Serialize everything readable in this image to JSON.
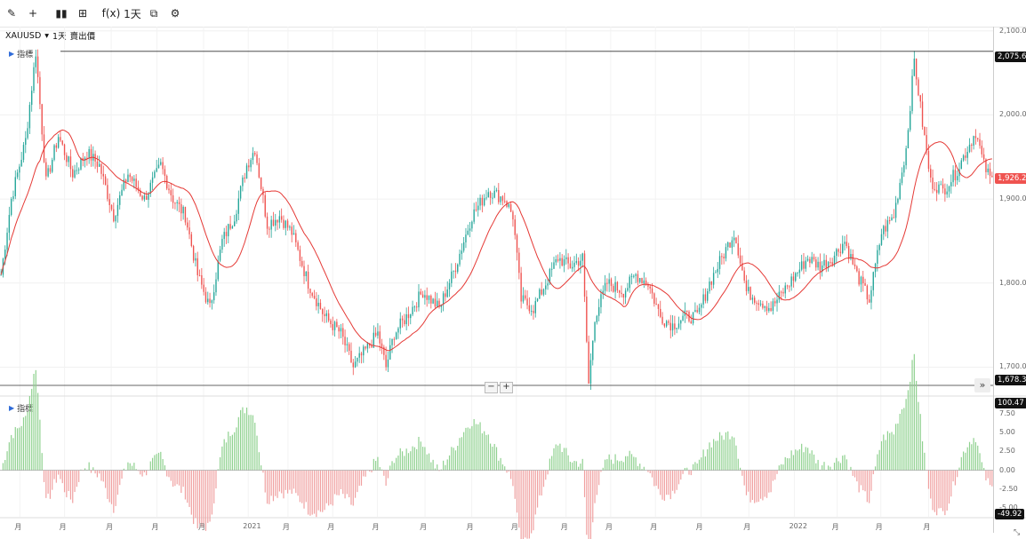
{
  "toolbar": {
    "items": [
      {
        "name": "draw-pencil-icon",
        "glyph": "✎"
      },
      {
        "name": "crosshair-icon",
        "glyph": "+"
      },
      {
        "name": "candlestick-type-icon",
        "glyph": "▮▮"
      },
      {
        "name": "layout-grid-icon",
        "glyph": "⊞"
      },
      {
        "name": "indicators-fx-icon",
        "glyph": "f(x)"
      },
      {
        "name": "interval-selector",
        "glyph": "1天"
      },
      {
        "name": "compare-icon",
        "glyph": "⧉"
      },
      {
        "name": "settings-icon",
        "glyph": "⚙"
      }
    ]
  },
  "symbol": {
    "ticker": "XAUUSD",
    "arrow": "▾",
    "interval": "1天",
    "mode": "賣出價"
  },
  "indicator_label": "指標",
  "price_badges": {
    "high": "2,075.63",
    "last": "1,926.26",
    "low": "1,678.35"
  },
  "osc_badges": {
    "top": "100.47",
    "bottom": "-49.92"
  },
  "colors": {
    "up": "#26a69a",
    "down": "#ef5350",
    "ma": "#e53935",
    "osc_up": "#8fd18f",
    "osc_down": "#f0a0a0",
    "last_badge": "#ef5350",
    "dark_badge": "#111111"
  },
  "zoom": {
    "minus": "−",
    "plus": "+"
  },
  "forward_glyph": "»",
  "corner_glyph": "⤡",
  "chart_data": [
    {
      "type": "candlestick",
      "series_name": "XAUUSD",
      "price_ticks": [
        {
          "value": 2100,
          "label": "2,100.00"
        },
        {
          "value": 2000,
          "label": "2,000.00"
        },
        {
          "value": 1900,
          "label": "1,900.00"
        },
        {
          "value": 1800,
          "label": "1,800.00"
        },
        {
          "value": 1700,
          "label": "1,700.00"
        }
      ],
      "ylim": [
        1672,
        2105
      ],
      "high_line": 2075.63,
      "low_line": 1678.35,
      "last": 1926.26,
      "ma_color": "#e53935",
      "anchors": [
        [
          0,
          1810
        ],
        [
          5,
          1900
        ],
        [
          12,
          1970
        ],
        [
          17,
          2075
        ],
        [
          22,
          1920
        ],
        [
          28,
          1975
        ],
        [
          35,
          1930
        ],
        [
          42,
          1955
        ],
        [
          48,
          1940
        ],
        [
          55,
          1880
        ],
        [
          62,
          1930
        ],
        [
          70,
          1900
        ],
        [
          78,
          1940
        ],
        [
          84,
          1900
        ],
        [
          90,
          1880
        ],
        [
          96,
          1810
        ],
        [
          102,
          1770
        ],
        [
          108,
          1850
        ],
        [
          114,
          1880
        ],
        [
          120,
          1940
        ],
        [
          124,
          1960
        ],
        [
          130,
          1870
        ],
        [
          136,
          1880
        ],
        [
          142,
          1860
        ],
        [
          150,
          1800
        ],
        [
          158,
          1760
        ],
        [
          166,
          1740
        ],
        [
          172,
          1700
        ],
        [
          178,
          1720
        ],
        [
          184,
          1740
        ],
        [
          188,
          1700
        ],
        [
          192,
          1740
        ],
        [
          198,
          1760
        ],
        [
          206,
          1790
        ],
        [
          214,
          1770
        ],
        [
          222,
          1820
        ],
        [
          230,
          1880
        ],
        [
          238,
          1910
        ],
        [
          246,
          1900
        ],
        [
          250,
          1880
        ],
        [
          254,
          1780
        ],
        [
          260,
          1770
        ],
        [
          266,
          1800
        ],
        [
          272,
          1830
        ],
        [
          278,
          1820
        ],
        [
          284,
          1830
        ],
        [
          287,
          1680
        ],
        [
          290,
          1760
        ],
        [
          296,
          1800
        ],
        [
          304,
          1790
        ],
        [
          310,
          1810
        ],
        [
          316,
          1800
        ],
        [
          322,
          1760
        ],
        [
          328,
          1750
        ],
        [
          334,
          1760
        ],
        [
          340,
          1760
        ],
        [
          346,
          1800
        ],
        [
          352,
          1830
        ],
        [
          358,
          1860
        ],
        [
          360,
          1840
        ],
        [
          364,
          1790
        ],
        [
          370,
          1780
        ],
        [
          376,
          1770
        ],
        [
          382,
          1790
        ],
        [
          388,
          1810
        ],
        [
          394,
          1830
        ],
        [
          400,
          1820
        ],
        [
          406,
          1830
        ],
        [
          412,
          1850
        ],
        [
          418,
          1810
        ],
        [
          424,
          1780
        ],
        [
          430,
          1860
        ],
        [
          436,
          1880
        ],
        [
          442,
          1960
        ],
        [
          446,
          2065
        ],
        [
          450,
          1990
        ],
        [
          454,
          1920
        ],
        [
          460,
          1910
        ],
        [
          466,
          1930
        ],
        [
          472,
          1960
        ],
        [
          476,
          1980
        ],
        [
          480,
          1940
        ],
        [
          484,
          1920
        ]
      ],
      "x_ticks": [
        {
          "pos": 0.02,
          "label": "月"
        },
        {
          "pos": 0.065,
          "label": "月"
        },
        {
          "pos": 0.112,
          "label": "月"
        },
        {
          "pos": 0.158,
          "label": "月"
        },
        {
          "pos": 0.205,
          "label": "月"
        },
        {
          "pos": 0.25,
          "label": "2021"
        },
        {
          "pos": 0.29,
          "label": "月"
        },
        {
          "pos": 0.335,
          "label": "月"
        },
        {
          "pos": 0.38,
          "label": "月"
        },
        {
          "pos": 0.428,
          "label": "月"
        },
        {
          "pos": 0.475,
          "label": "月"
        },
        {
          "pos": 0.52,
          "label": "月"
        },
        {
          "pos": 0.57,
          "label": "月"
        },
        {
          "pos": 0.615,
          "label": "月"
        },
        {
          "pos": 0.66,
          "label": "月"
        },
        {
          "pos": 0.706,
          "label": "月"
        },
        {
          "pos": 0.754,
          "label": "月"
        },
        {
          "pos": 0.8,
          "label": "2022"
        },
        {
          "pos": 0.843,
          "label": "月"
        },
        {
          "pos": 0.887,
          "label": "月"
        },
        {
          "pos": 0.935,
          "label": "月"
        }
      ]
    },
    {
      "type": "histogram",
      "series_name": "指標",
      "ticks": [
        {
          "value": 7.5,
          "label": "7.50"
        },
        {
          "value": 5,
          "label": "5.00"
        },
        {
          "value": 2.5,
          "label": "2.50"
        },
        {
          "value": 0,
          "label": "0.00"
        },
        {
          "value": -2.5,
          "label": "-2.50"
        },
        {
          "value": -5,
          "label": "-5.00"
        }
      ],
      "ylim": [
        -6.2,
        9.4
      ]
    }
  ]
}
